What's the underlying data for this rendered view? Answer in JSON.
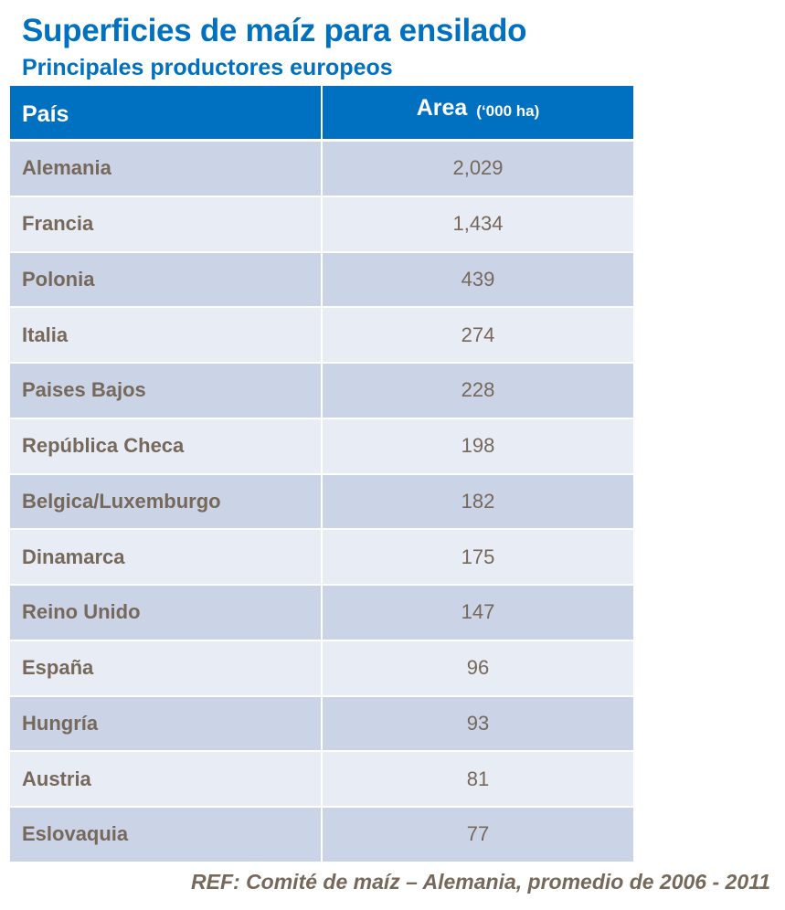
{
  "chart_data": {
    "type": "table",
    "title": "Superficies de maíz para ensilado",
    "subtitle": "Principales productores europeos",
    "columns": [
      "País",
      "Area",
      "(‘000 ha)"
    ],
    "header": {
      "col1": "País",
      "col2": "Area",
      "col2_unit": "(‘000 ha)"
    },
    "rows": [
      {
        "country": "Alemania",
        "area": "2,029"
      },
      {
        "country": "Francia",
        "area": "1,434"
      },
      {
        "country": "Polonia",
        "area": "439"
      },
      {
        "country": "Italia",
        "area": "274"
      },
      {
        "country": "Paises Bajos",
        "area": "228"
      },
      {
        "country": "República Checa",
        "area": "198"
      },
      {
        "country": "Belgica/Luxemburgo",
        "area": "182"
      },
      {
        "country": "Dinamarca",
        "area": "175"
      },
      {
        "country": "Reino Unido",
        "area": "147"
      },
      {
        "country": "España",
        "area": "96"
      },
      {
        "country": "Hungría",
        "area": "93"
      },
      {
        "country": "Austria",
        "area": "81"
      },
      {
        "country": "Eslovaquia",
        "area": "77"
      }
    ],
    "source": "REF: Comité de maíz – Alemania,  promedio de 2006 - 2011",
    "colors": {
      "header": "#0070C0",
      "row_odd": "#CAD4E6",
      "row_even": "#E8ECF5",
      "text": "#76685A",
      "title": "#0070C0"
    }
  }
}
